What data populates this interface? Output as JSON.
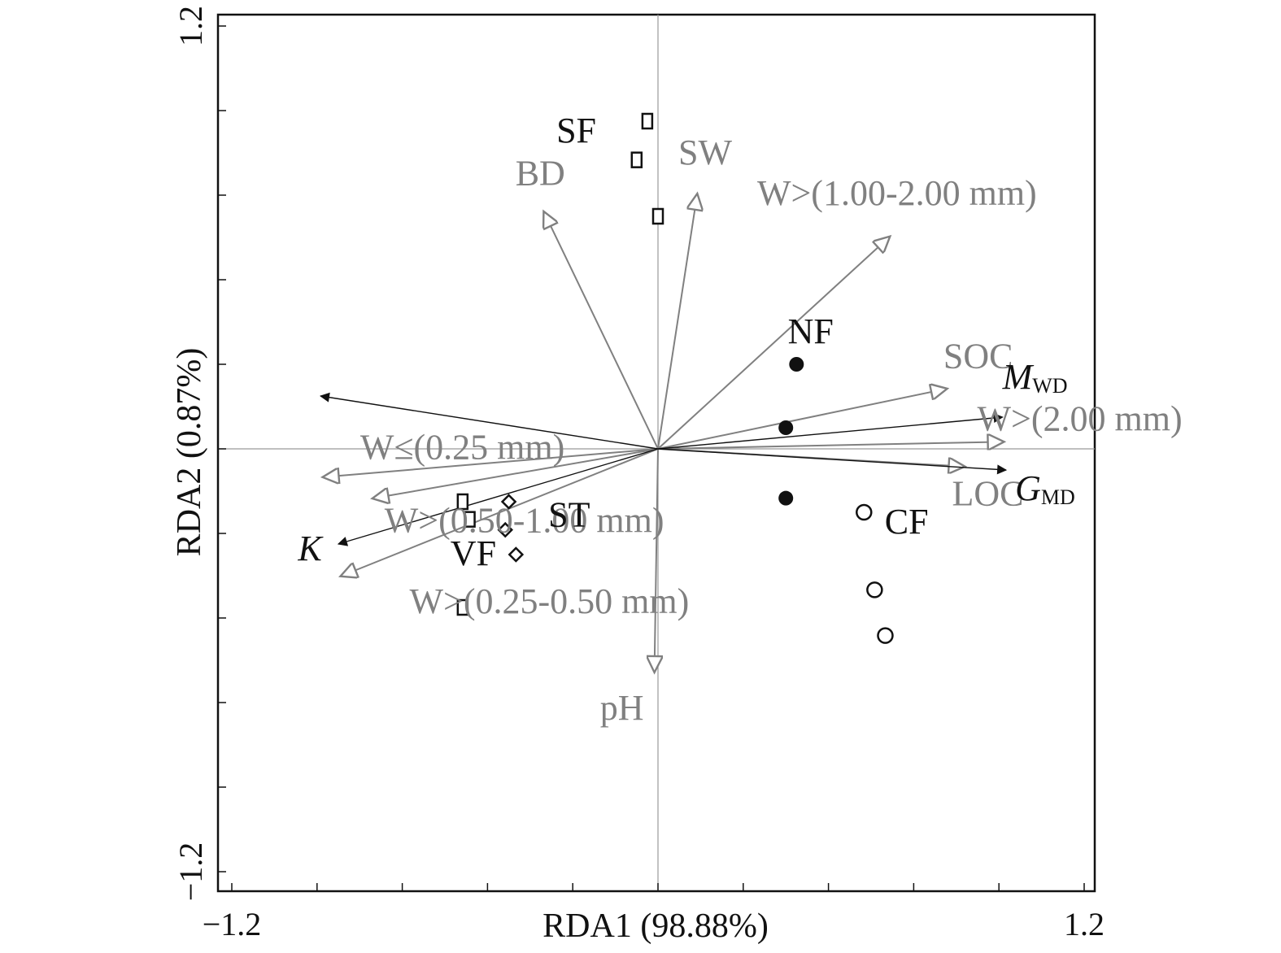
{
  "chart_data": {
    "type": "scatter",
    "title": "",
    "xlabel": "RDA1 (98.88%)",
    "ylabel": "RDA2 (0.87%)",
    "xlim": [
      -1.2,
      1.2
    ],
    "ylim": [
      -1.2,
      1.2
    ],
    "x_tick_labels": [
      "−1.2",
      "1.2"
    ],
    "y_tick_labels": [
      "1.2",
      "−1.2"
    ],
    "grid": false,
    "zero_lines": true,
    "colors": {
      "explanatory": "#808080",
      "response": "#111111",
      "samples": "#111111"
    },
    "explanatory_vectors": [
      {
        "label": "BD",
        "x": -0.32,
        "y": 0.67
      },
      {
        "label": "SW",
        "x": 0.11,
        "y": 0.72
      },
      {
        "label": "W>(1.00-2.00 mm)",
        "x": 0.65,
        "y": 0.6
      },
      {
        "label": "SOC",
        "x": 0.81,
        "y": 0.17
      },
      {
        "label": "W>(2.00 mm)",
        "x": 0.97,
        "y": 0.02
      },
      {
        "label": "LOC",
        "x": 0.86,
        "y": -0.05
      },
      {
        "label": "W≤(0.25 mm)",
        "x": -0.94,
        "y": -0.08
      },
      {
        "label": "W>(0.50-1.00 mm)",
        "x": -0.8,
        "y": -0.14
      },
      {
        "label": "W>(0.25-0.50 mm)",
        "x": -0.89,
        "y": -0.36
      },
      {
        "label": "pH",
        "x": -0.01,
        "y": -0.63
      }
    ],
    "response_vectors": [
      {
        "label": "MWD",
        "label_main": "M",
        "label_sub": "WD",
        "x": 0.97,
        "y": 0.09
      },
      {
        "label": "GMD",
        "label_main": "G",
        "label_sub": "MD",
        "x": 0.98,
        "y": -0.06
      },
      {
        "label": "K",
        "label_main": "K",
        "label_sub": "",
        "x": -0.9,
        "y": -0.27
      },
      {
        "label": "",
        "label_main": "",
        "label_sub": "",
        "x": -0.95,
        "y": 0.15
      }
    ],
    "samples": [
      {
        "group": "NF",
        "symbol": "filled-circle",
        "points": [
          [
            0.39,
            0.24
          ],
          [
            0.36,
            0.06
          ],
          [
            0.36,
            -0.14
          ]
        ]
      },
      {
        "group": "CF",
        "symbol": "open-circle",
        "points": [
          [
            0.58,
            -0.18
          ],
          [
            0.61,
            -0.4
          ],
          [
            0.64,
            -0.53
          ]
        ]
      },
      {
        "group": "SF",
        "symbol": "open-square",
        "points": [
          [
            -0.03,
            0.93
          ],
          [
            -0.06,
            0.82
          ],
          [
            0.0,
            0.66
          ]
        ]
      },
      {
        "group": "ST",
        "symbol": "open-diamond",
        "points": [
          [
            -0.42,
            -0.15
          ],
          [
            -0.43,
            -0.23
          ],
          [
            -0.4,
            -0.3
          ]
        ]
      },
      {
        "group": "VF",
        "symbol": "open-square",
        "points": [
          [
            -0.55,
            -0.15
          ],
          [
            -0.53,
            -0.2
          ],
          [
            -0.55,
            -0.45
          ]
        ]
      }
    ],
    "group_labels": [
      {
        "text": "NF",
        "x": 0.43,
        "y": 0.3
      },
      {
        "text": "CF",
        "x": 0.7,
        "y": -0.24
      },
      {
        "text": "SF",
        "x": -0.23,
        "y": 0.87
      },
      {
        "text": "ST",
        "x": -0.25,
        "y": -0.22
      },
      {
        "text": "VF",
        "x": -0.52,
        "y": -0.33
      }
    ]
  }
}
